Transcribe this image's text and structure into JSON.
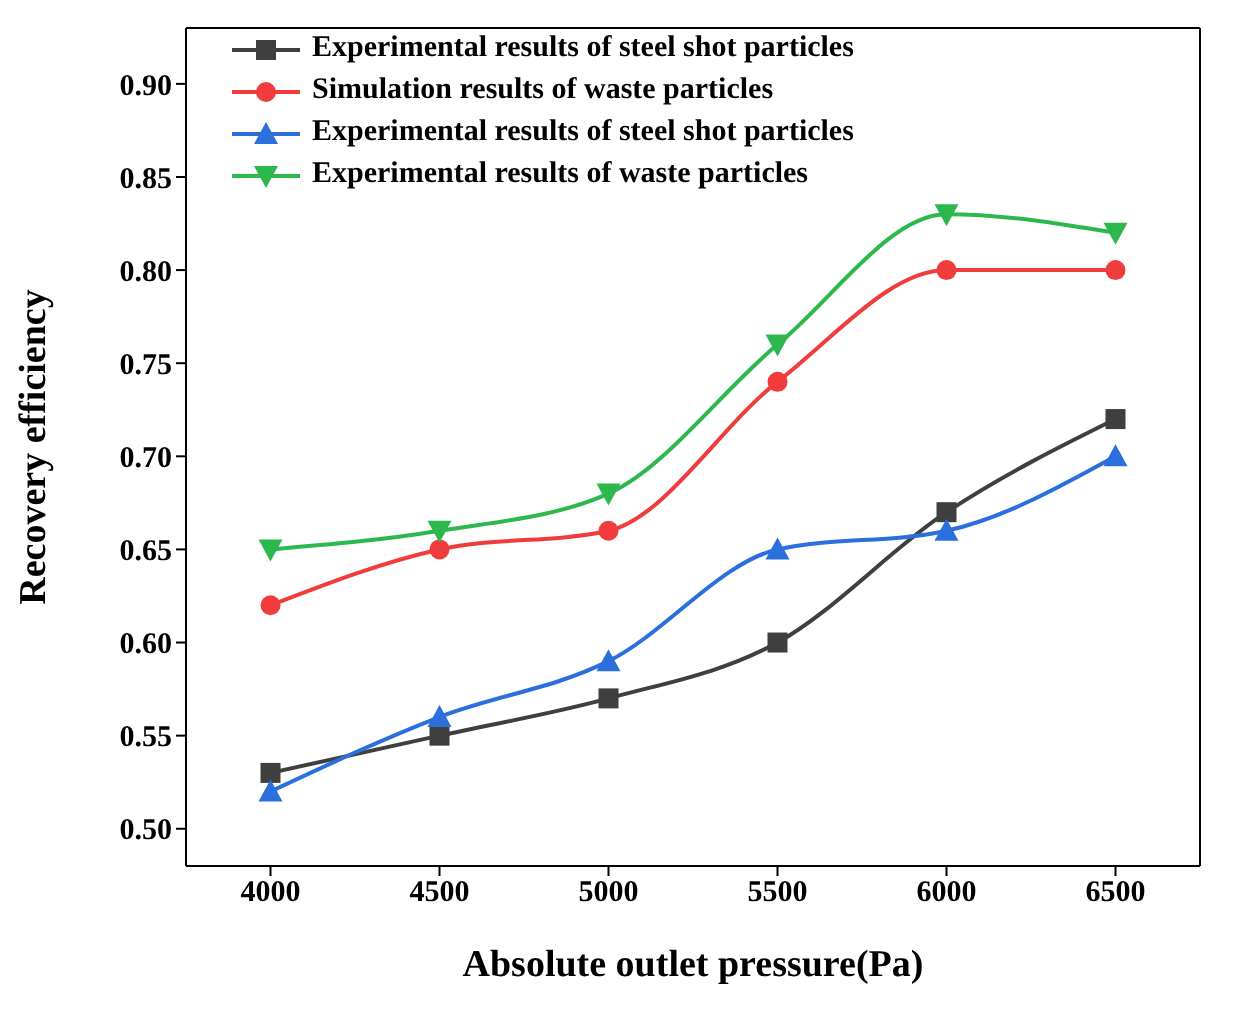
{
  "chart_data": {
    "type": "line",
    "xlabel": "Absolute outlet pressure(Pa)",
    "ylabel": "Recovery efficiency",
    "x": [
      4000,
      4500,
      5000,
      5500,
      6000,
      6500
    ],
    "xlim": [
      3750,
      6750
    ],
    "xticks": [
      4000,
      4500,
      5000,
      5500,
      6000,
      6500
    ],
    "ylim": [
      0.48,
      0.93
    ],
    "yticks": [
      {
        "value": 0.5,
        "label": "0.50"
      },
      0.55,
      {
        "value": 0.6,
        "label": "0.60"
      },
      0.65,
      {
        "value": 0.7,
        "label": "0.70"
      },
      0.75,
      {
        "value": 0.8,
        "label": "0.80"
      },
      0.85,
      {
        "value": 0.9,
        "label": "0.90"
      }
    ],
    "grid": false,
    "legend": "top left",
    "series": [
      {
        "name": "Experimental results of steel shot particles",
        "color": "#3f3f3f",
        "marker": "square",
        "values": [
          0.53,
          0.55,
          0.57,
          0.6,
          0.67,
          0.72
        ]
      },
      {
        "name": "Simulation results of waste particles",
        "color": "#f03c3c",
        "marker": "circle",
        "values": [
          0.62,
          0.65,
          0.66,
          0.74,
          0.8,
          0.8
        ]
      },
      {
        "name": "Experimental results of steel shot particles",
        "color": "#2a6fdb",
        "marker": "triangle",
        "values": [
          0.52,
          0.56,
          0.59,
          0.65,
          0.66,
          0.7
        ]
      },
      {
        "name": "Experimental results of waste particles",
        "color": "#2db84d",
        "marker": "triangle-down",
        "values": [
          0.65,
          0.66,
          0.68,
          0.76,
          0.83,
          0.82
        ]
      }
    ]
  }
}
